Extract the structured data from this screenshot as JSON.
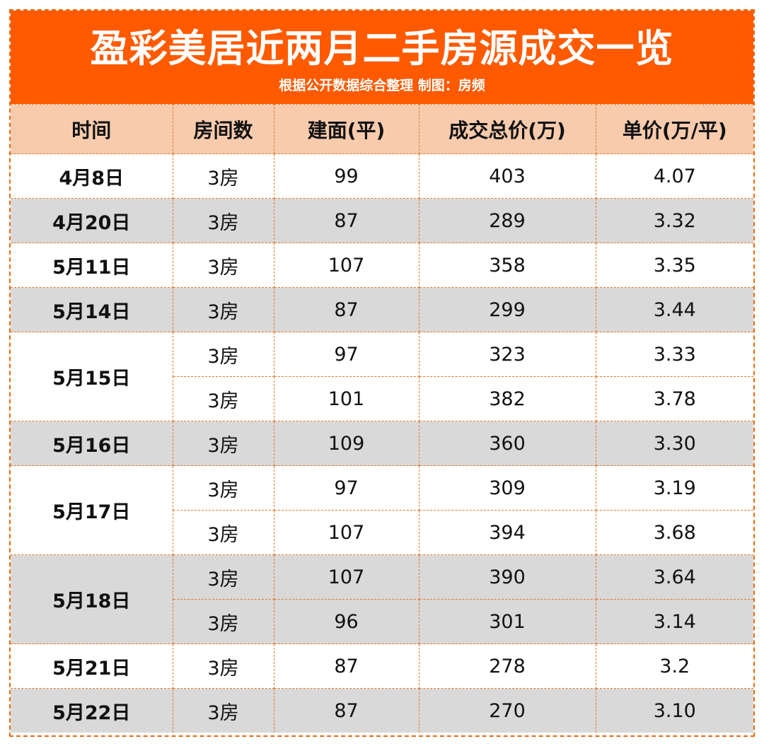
{
  "header": {
    "title": "盈彩美居近两月二手房源成交一览",
    "subtitle": "根据公开数据综合整理 制图：房频"
  },
  "table": {
    "columns": [
      "时间",
      "房间数",
      "建面(平)",
      "成交总价(万)",
      "单价(万/平)"
    ],
    "groups": [
      {
        "date": "4月8日",
        "shade": "white",
        "rows": [
          {
            "rooms": "3房",
            "area": "99",
            "total": "403",
            "unit": "4.07"
          }
        ]
      },
      {
        "date": "4月20日",
        "shade": "gray",
        "rows": [
          {
            "rooms": "3房",
            "area": "87",
            "total": "289",
            "unit": "3.32"
          }
        ]
      },
      {
        "date": "5月11日",
        "shade": "white",
        "rows": [
          {
            "rooms": "3房",
            "area": "107",
            "total": "358",
            "unit": "3.35"
          }
        ]
      },
      {
        "date": "5月14日",
        "shade": "gray",
        "rows": [
          {
            "rooms": "3房",
            "area": "87",
            "total": "299",
            "unit": "3.44"
          }
        ]
      },
      {
        "date": "5月15日",
        "shade": "white",
        "rows": [
          {
            "rooms": "3房",
            "area": "97",
            "total": "323",
            "unit": "3.33"
          },
          {
            "rooms": "3房",
            "area": "101",
            "total": "382",
            "unit": "3.78"
          }
        ]
      },
      {
        "date": "5月16日",
        "shade": "gray",
        "rows": [
          {
            "rooms": "3房",
            "area": "109",
            "total": "360",
            "unit": "3.30"
          }
        ]
      },
      {
        "date": "5月17日",
        "shade": "white",
        "rows": [
          {
            "rooms": "3房",
            "area": "97",
            "total": "309",
            "unit": "3.19"
          },
          {
            "rooms": "3房",
            "area": "107",
            "total": "394",
            "unit": "3.68"
          }
        ]
      },
      {
        "date": "5月18日",
        "shade": "gray",
        "rows": [
          {
            "rooms": "3房",
            "area": "107",
            "total": "390",
            "unit": "3.64"
          },
          {
            "rooms": "3房",
            "area": "96",
            "total": "301",
            "unit": "3.14"
          }
        ]
      },
      {
        "date": "5月21日",
        "shade": "white",
        "rows": [
          {
            "rooms": "3房",
            "area": "87",
            "total": "278",
            "unit": "3.2"
          }
        ]
      },
      {
        "date": "5月22日",
        "shade": "gray",
        "rows": [
          {
            "rooms": "3房",
            "area": "87",
            "total": "270",
            "unit": "3.10"
          }
        ]
      }
    ]
  }
}
